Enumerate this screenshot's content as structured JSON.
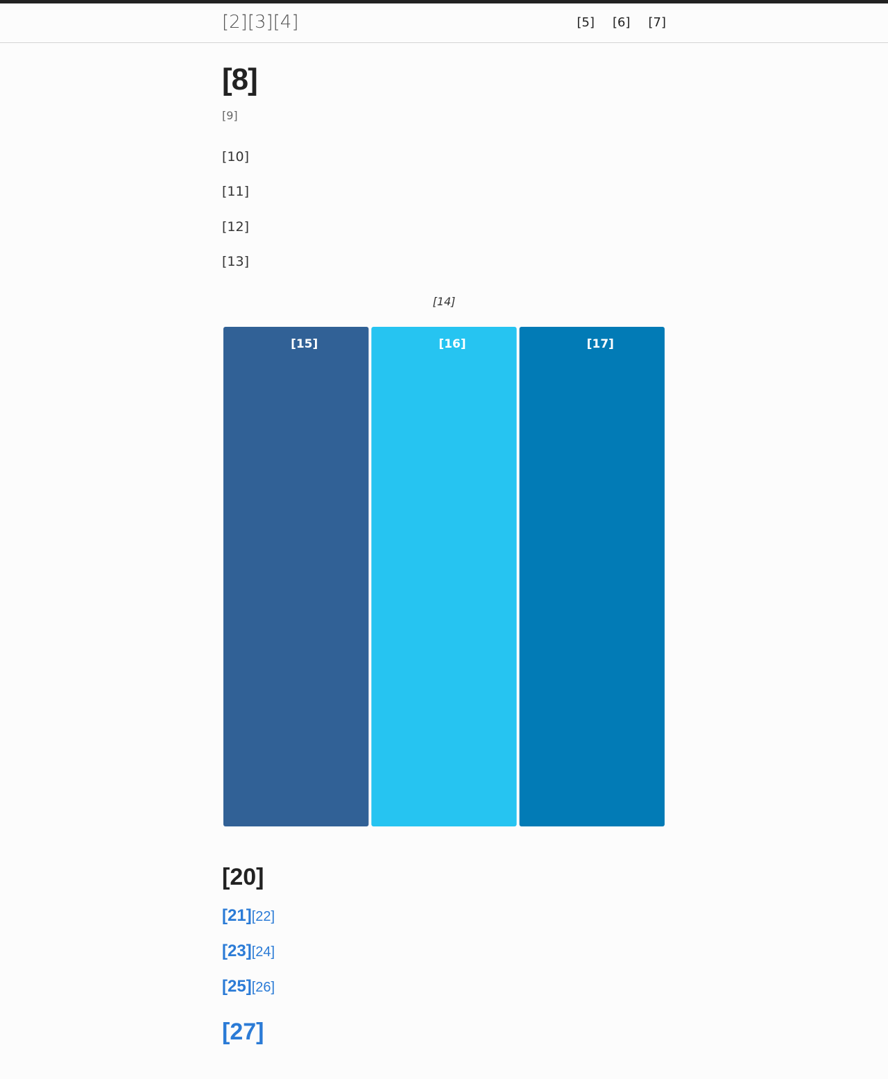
{
  "header": {
    "brand": "[2][3][4]",
    "nav": [
      "[5]",
      "[6]",
      "[7]"
    ]
  },
  "main": {
    "title": "[8]",
    "subtitle": "[9]",
    "lines": [
      "[10]",
      "[11]",
      "[12]",
      "[13]"
    ],
    "chart_caption": "[14]"
  },
  "chart_data": {
    "type": "bar",
    "categories": [
      "[15]",
      "[16]",
      "[17]"
    ],
    "values": [
      1,
      1,
      1
    ],
    "colors": [
      "#316196",
      "#26c4f1",
      "#027bb6"
    ],
    "grid": false
  },
  "related": {
    "title": "[20]",
    "links": [
      {
        "main": "[21]",
        "sub": "[22]"
      },
      {
        "main": "[23]",
        "sub": "[24]"
      },
      {
        "main": "[25]",
        "sub": "[26]"
      }
    ],
    "footer_link": "[27]"
  }
}
